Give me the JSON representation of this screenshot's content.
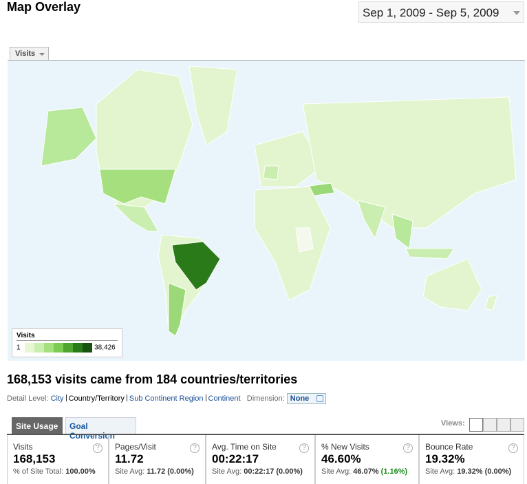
{
  "header": {
    "title": "Map Overlay",
    "date_range": "Sep 1, 2009 - Sep 5, 2009"
  },
  "map": {
    "metric_tab": "Visits",
    "legend": {
      "title": "Visits",
      "min": "1",
      "max": "38,426"
    }
  },
  "summary": "168,153 visits came from 184 countries/territories",
  "detail_level": {
    "label": "Detail Level:",
    "options": [
      "City",
      "Country/Territory",
      "Sub Continent Region",
      "Continent"
    ],
    "dimension_label": "Dimension:",
    "dimension_value": "None"
  },
  "tabs": [
    "Site Usage",
    "Goal Conversion"
  ],
  "views_label": "Views:",
  "help_icon": "?",
  "metrics": [
    {
      "name": "Visits",
      "value": "168,153",
      "sub_label": "% of Site Total:",
      "sub_value": "100.00%"
    },
    {
      "name": "Pages/Visit",
      "value": "11.72",
      "sub_label": "Site Avg:",
      "sub_value": "11.72",
      "change": "(0.00%)"
    },
    {
      "name": "Avg. Time on Site",
      "value": "00:22:17",
      "sub_label": "Site Avg:",
      "sub_value": "00:22:17",
      "change": "(0.00%)"
    },
    {
      "name": "% New Visits",
      "value": "46.60%",
      "sub_label": "Site Avg:",
      "sub_value": "46.07%",
      "change": "(1.16%)"
    },
    {
      "name": "Bounce Rate",
      "value": "19.32%",
      "sub_label": "Site Avg:",
      "sub_value": "19.32%",
      "change": "(0.00%)"
    }
  ]
}
